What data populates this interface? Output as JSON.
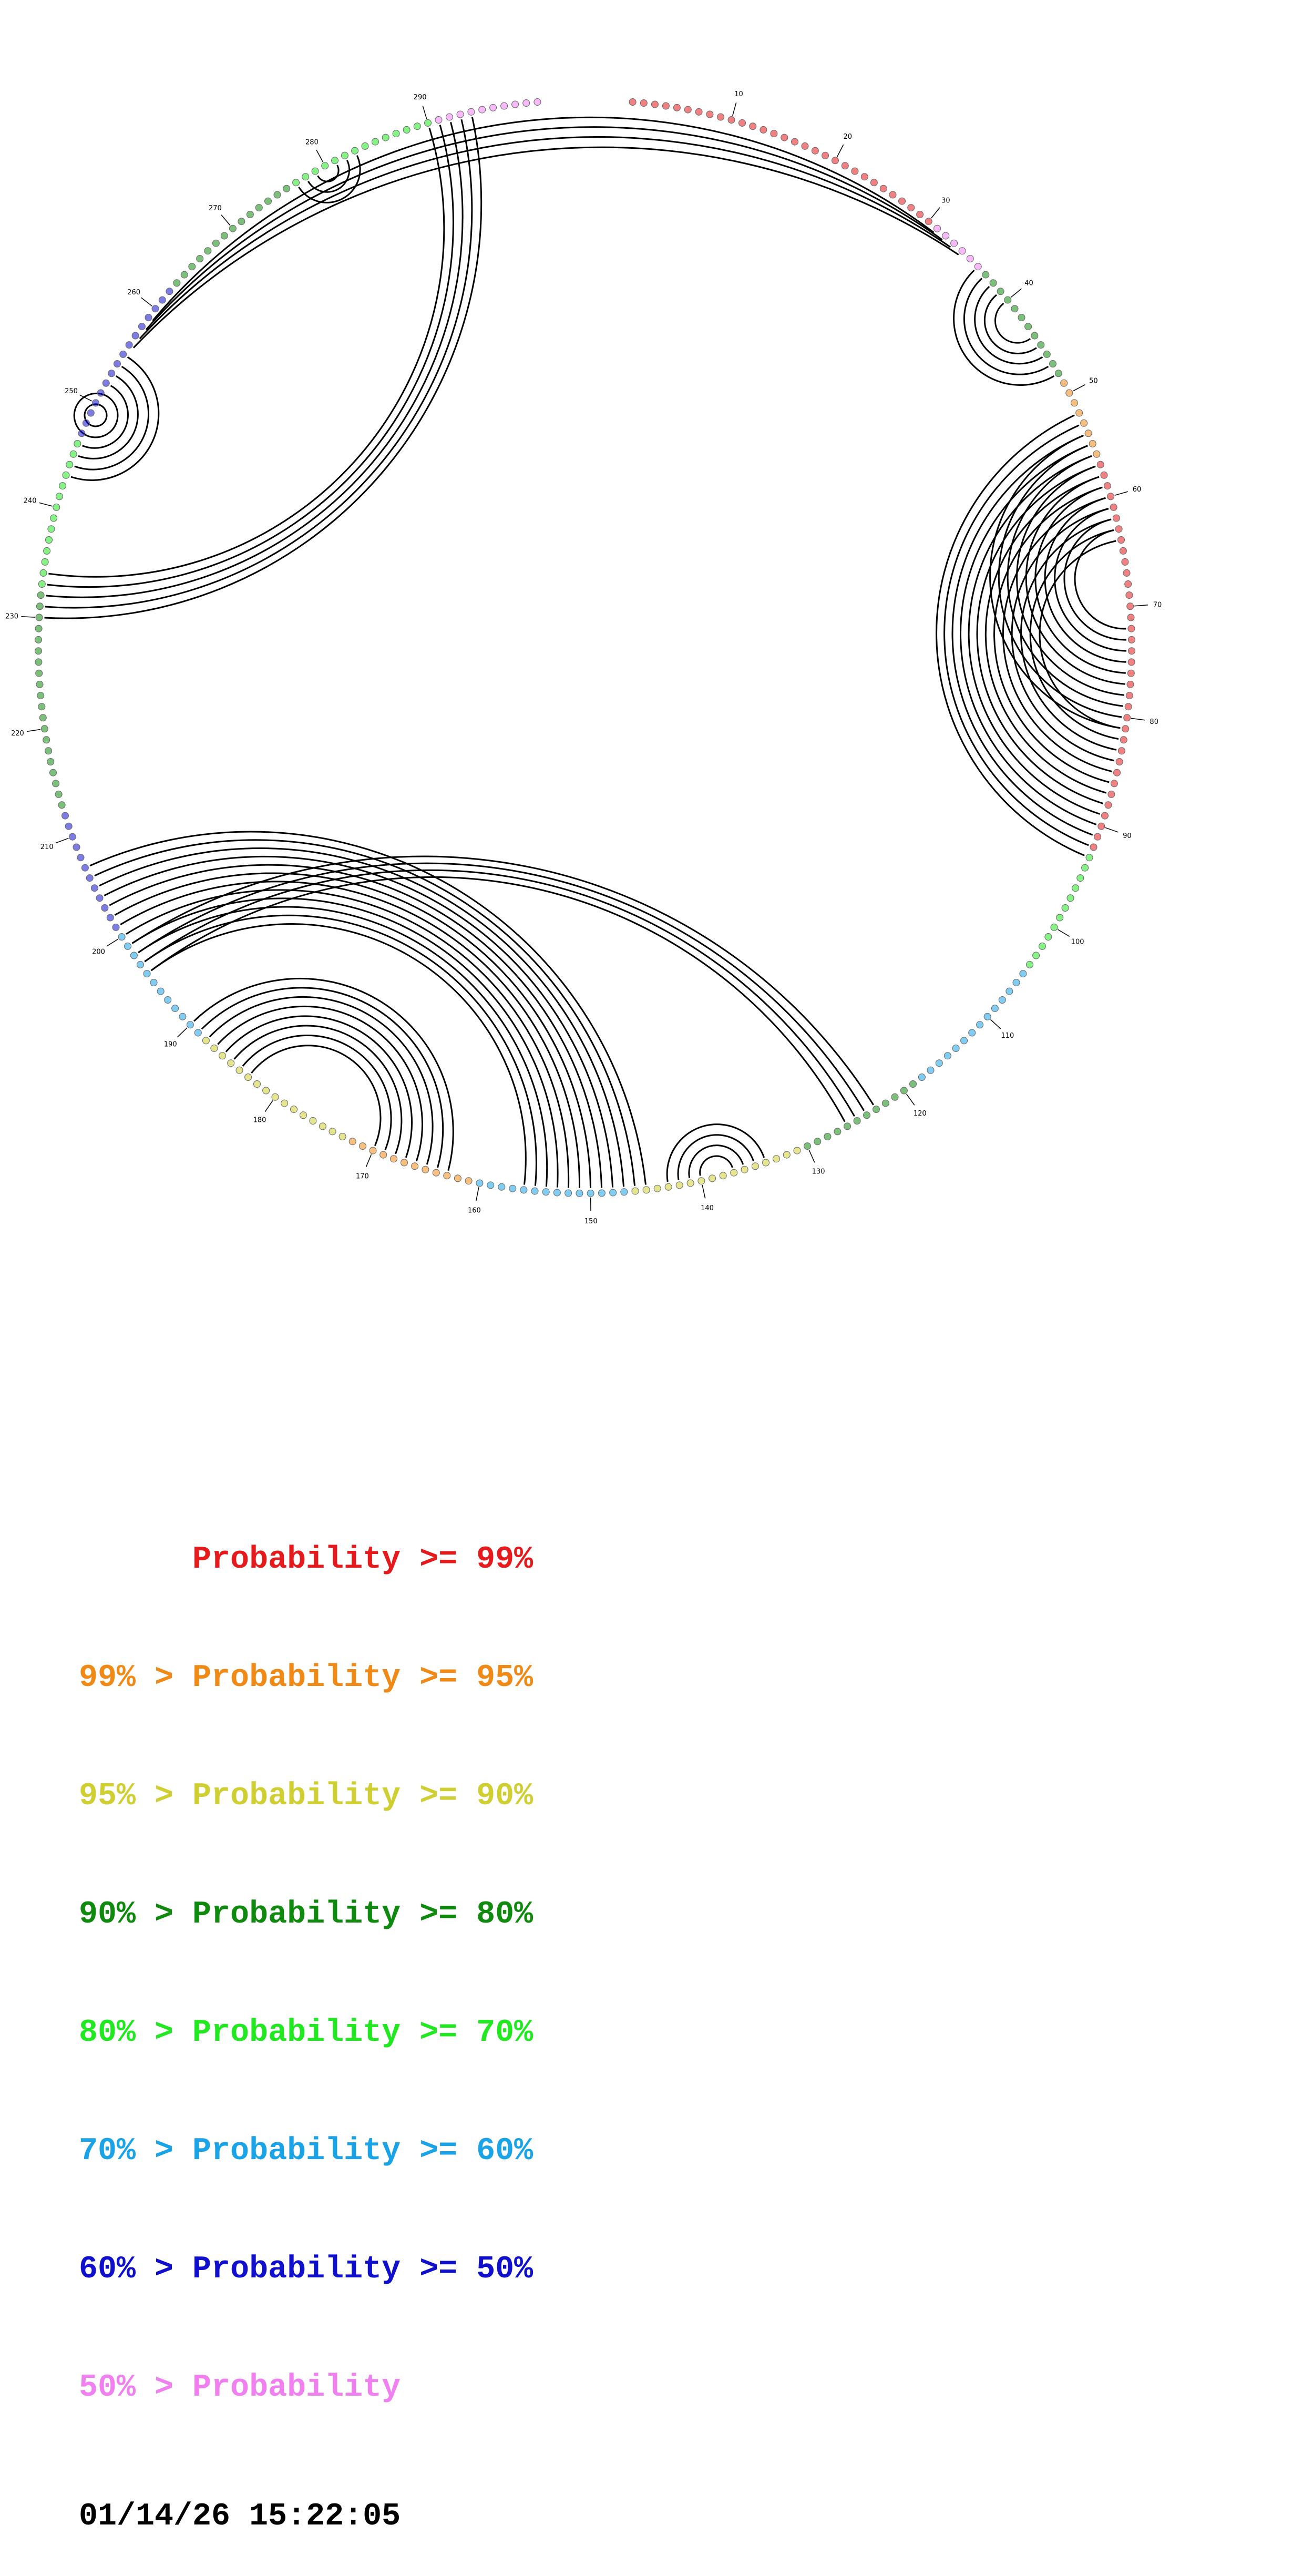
{
  "diagram": {
    "sequence_length": 300,
    "tick_labels": [
      "10",
      "20",
      "30",
      "40",
      "50",
      "60",
      "70",
      "80",
      "90",
      "100",
      "110",
      "120",
      "130",
      "140",
      "150",
      "160",
      "170",
      "180",
      "190",
      "200",
      "210",
      "220",
      "230",
      "240",
      "250",
      "260",
      "270",
      "280",
      "290"
    ],
    "arc_color": "#000000",
    "helices": [
      {
        "i": 31,
        "j": 259,
        "length": 4
      },
      {
        "i": 36,
        "j": 48,
        "length": 5
      },
      {
        "i": 52,
        "j": 93,
        "length": 13
      },
      {
        "i": 54,
        "j": 81,
        "length": 10
      },
      {
        "i": 123,
        "j": 199,
        "length": 4
      },
      {
        "i": 134,
        "j": 143,
        "length": 4
      },
      {
        "i": 145,
        "j": 207,
        "length": 12
      },
      {
        "i": 163,
        "j": 190,
        "length": 8
      },
      {
        "i": 230,
        "j": 294,
        "length": 5
      },
      {
        "i": 243,
        "j": 255,
        "length": 9
      },
      {
        "i": 277,
        "j": 283,
        "length": 3
      }
    ]
  },
  "colors": {
    "p99": "#e41a1c",
    "p95": "#f08a16",
    "p90": "#cfcf33",
    "p80": "#0f8a0f",
    "p70": "#22e822",
    "p60": "#1aa3e6",
    "p50": "#1010cc",
    "p0": "#f080f0"
  },
  "legend": {
    "rows": [
      {
        "prefix": "      ",
        "text": "Probability >= 99%",
        "color": "#e41a1c"
      },
      {
        "prefix": "99% > ",
        "text": "Probability >= 95%",
        "color": "#f08a16"
      },
      {
        "prefix": "95% > ",
        "text": "Probability >= 90%",
        "color": "#cfcf33"
      },
      {
        "prefix": "90% > ",
        "text": "Probability >= 80%",
        "color": "#0f8a0f"
      },
      {
        "prefix": "80% > ",
        "text": "Probability >= 70%",
        "color": "#22e822"
      },
      {
        "prefix": "70% > ",
        "text": "Probability >= 60%",
        "color": "#1aa3e6"
      },
      {
        "prefix": "60% > ",
        "text": "Probability >= 50%",
        "color": "#1010cc"
      },
      {
        "prefix": "50% > ",
        "text": "Probability",
        "color": "#f080f0"
      }
    ],
    "timestamp": "01/14/26 15:22:05"
  }
}
